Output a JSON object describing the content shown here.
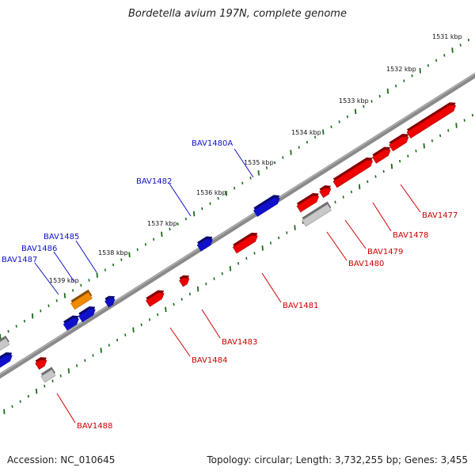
{
  "title": "Bordetella avium 197N, complete genome",
  "footer": {
    "accession": "Accession: NC_010645",
    "summary": "Topology: circular; Length: 3,732,255 bp; Genes: 3,455"
  },
  "colors": {
    "backbone": "#7a7a7a",
    "tick_outer": "#1a6b1a",
    "forward_gene": "#1010cc",
    "reverse_gene": "#ee0000",
    "rna_gene": "#f08a00",
    "other_feature": "#c8c8c8",
    "forward_label": "#1010cc",
    "reverse_label": "#cc0000"
  },
  "scale_ticks": [
    "1531 kbp",
    "1532 kbp",
    "1533 kbp",
    "1534 kbp",
    "1535 kbp",
    "1536 kbp",
    "1537 kbp",
    "1538 kbp",
    "1539 kbp"
  ],
  "forward_labels": [
    "BAV1480A",
    "BAV1482",
    "BAV1485",
    "BAV1486",
    "BAV1487"
  ],
  "reverse_labels": [
    "BAV1477",
    "BAV1478",
    "BAV1479",
    "BAV1480",
    "BAV1481",
    "BAV1483",
    "BAV1484",
    "BAV1488"
  ]
}
